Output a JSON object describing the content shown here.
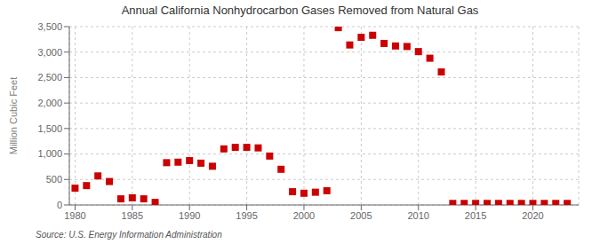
{
  "chart_data": {
    "type": "scatter",
    "title": "Annual California Nonhydrocarbon Gases Removed from Natural Gas",
    "ylabel": "Million Cubic Feet",
    "annotations": [
      "Source: U.S. Energy Information Administration"
    ],
    "color": "#cc0000",
    "marker": "square",
    "grid": true,
    "xlim": [
      1979.5,
      2024
    ],
    "ylim": [
      0,
      3500
    ],
    "xticks": [
      1980,
      1985,
      1990,
      1995,
      2000,
      2005,
      2010,
      2015,
      2020
    ],
    "yticks": [
      0,
      500,
      {
        "value": 1000,
        "label": "1,000"
      },
      {
        "value": 1500,
        "label": "1,500"
      },
      {
        "value": 2000,
        "label": "2,000"
      },
      {
        "value": 2500,
        "label": "2,500"
      },
      {
        "value": 3000,
        "label": "3,000"
      },
      {
        "value": 3500,
        "label": "3,500"
      }
    ],
    "x": [
      1980,
      1981,
      1982,
      1983,
      1984,
      1985,
      1986,
      1987,
      1988,
      1989,
      1990,
      1991,
      1992,
      1993,
      1994,
      1995,
      1996,
      1997,
      1998,
      1999,
      2000,
      2001,
      2002,
      2003,
      2004,
      2005,
      2006,
      2007,
      2008,
      2009,
      2010,
      2011,
      2012,
      2013,
      2014,
      2015,
      2016,
      2017,
      2018,
      2019,
      2020,
      2021,
      2022,
      2023
    ],
    "values": [
      330,
      380,
      570,
      460,
      120,
      140,
      120,
      50,
      830,
      840,
      870,
      820,
      760,
      1100,
      1130,
      1130,
      1120,
      960,
      700,
      260,
      230,
      250,
      280,
      3480,
      3140,
      3290,
      3330,
      3170,
      3120,
      3110,
      3010,
      2880,
      2610,
      30,
      30,
      30,
      30,
      30,
      30,
      30,
      30,
      30,
      30,
      30
    ]
  }
}
